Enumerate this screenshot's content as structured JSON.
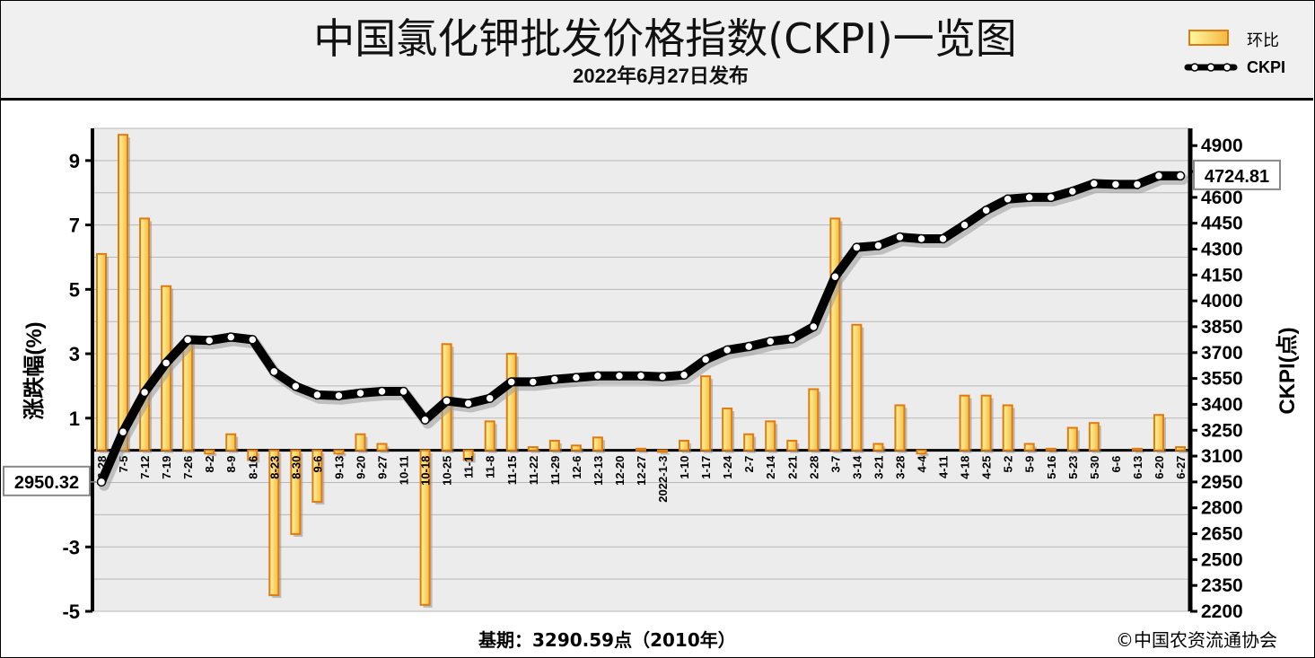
{
  "header": {
    "title": "中国氯化钾批发价格指数(CKPI)一览图",
    "subtitle": "2022年6月27日发布"
  },
  "legend": {
    "bar_label": "环比",
    "line_label": "CKPI"
  },
  "footer": {
    "base": "基期：3290.59点（2010年）",
    "credit": "©中国农资流通协会"
  },
  "colors": {
    "bar_fill_top": "#fff7a0",
    "bar_fill_bottom": "#f4b942",
    "bar_stroke": "#e07b10",
    "line": "#000000",
    "plot_bg": "#ececec"
  },
  "chart_data": {
    "type": "bar+line",
    "title": "中国氯化钾批发价格指数(CKPI)一览图",
    "subtitle": "2022年6月27日发布",
    "ylabel_left": "涨跌幅(%)",
    "ylabel_right": "CKPI(点)",
    "ylim_left": [
      -5,
      10
    ],
    "yticks_left": [
      9,
      7,
      5,
      3,
      1,
      -3,
      -5
    ],
    "ylim_right": [
      2200,
      5000
    ],
    "yticks_right": [
      4900,
      4750,
      4600,
      4450,
      4300,
      4150,
      4000,
      3850,
      3700,
      3550,
      3400,
      3250,
      3100,
      2950,
      2800,
      2650,
      2500,
      2350,
      2200
    ],
    "grid": true,
    "legend_position": "top-right",
    "categories": [
      "6-28",
      "7-5",
      "7-12",
      "7-19",
      "7-26",
      "8-2",
      "8-9",
      "8-16",
      "8-23",
      "8-30",
      "9-6",
      "9-13",
      "9-20",
      "9-27",
      "10-11",
      "10-18",
      "10-25",
      "11-1",
      "11-8",
      "11-15",
      "11-22",
      "11-29",
      "12-6",
      "12-13",
      "12-20",
      "12-27",
      "2022-1-3",
      "1-10",
      "1-17",
      "1-24",
      "2-7",
      "2-14",
      "2-21",
      "2-28",
      "3-7",
      "3-14",
      "3-21",
      "3-28",
      "4-4",
      "4-11",
      "4-18",
      "4-25",
      "5-2",
      "5-9",
      "5-16",
      "5-23",
      "5-30",
      "6-6",
      "6-13",
      "6-20",
      "6-27"
    ],
    "series": [
      {
        "name": "环比",
        "type": "bar",
        "axis": "left",
        "values": [
          6.1,
          9.8,
          7.2,
          5.1,
          3.4,
          -0.1,
          0.5,
          -0.3,
          -4.5,
          -2.6,
          -1.6,
          -0.1,
          0.5,
          0.2,
          0.0,
          -4.8,
          3.3,
          -0.3,
          0.9,
          3.0,
          0.1,
          0.3,
          0.15,
          0.4,
          0.0,
          0.05,
          -0.05,
          0.3,
          2.3,
          1.3,
          0.5,
          0.9,
          0.3,
          1.9,
          7.2,
          3.9,
          0.2,
          1.4,
          -0.1,
          0.0,
          1.7,
          1.7,
          1.4,
          0.2,
          0.05,
          0.7,
          0.85,
          0.0,
          0.05,
          1.1,
          0.1
        ]
      },
      {
        "name": "CKPI",
        "type": "line",
        "axis": "right",
        "values": [
          2950.32,
          3240,
          3470,
          3640,
          3775,
          3770,
          3790,
          3775,
          3590,
          3505,
          3455,
          3450,
          3465,
          3475,
          3475,
          3310,
          3420,
          3405,
          3435,
          3530,
          3530,
          3545,
          3555,
          3565,
          3565,
          3565,
          3560,
          3570,
          3660,
          3715,
          3735,
          3765,
          3780,
          3850,
          4140,
          4310,
          4320,
          4370,
          4360,
          4360,
          4440,
          4525,
          4590,
          4600,
          4600,
          4635,
          4680,
          4675,
          4675,
          4725,
          4724.81
        ]
      }
    ],
    "annotations": {
      "first_value": "2950.32",
      "last_value": "4724.81"
    }
  }
}
